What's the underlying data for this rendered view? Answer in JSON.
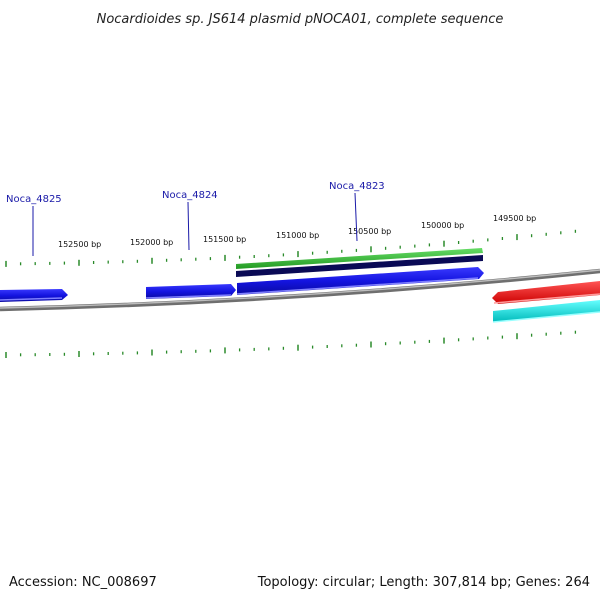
{
  "title": "Nocardioides sp. JS614 plasmid pNOCA01, complete sequence",
  "footer": {
    "accession": "Accession: NC_008697",
    "summary": "Topology: circular; Length: 307,814 bp; Genes: 264"
  },
  "colors": {
    "tick": "#2a8a2a",
    "backbone": "#888888",
    "gene_blue": "#1414e0",
    "gene_green": "#33bb33",
    "gene_navy": "#0a0a55",
    "gene_red": "#ee1111",
    "gene_cyan": "#11dddd",
    "label": "#1a1aa8"
  },
  "scale": {
    "tick_labels": [
      "152500 bp",
      "152000 bp",
      "151500 bp",
      "151000 bp",
      "150500 bp",
      "150000 bp",
      "149500 bp"
    ]
  },
  "genes": [
    {
      "name": "Noca_4825"
    },
    {
      "name": "Noca_4824"
    },
    {
      "name": "Noca_4823"
    }
  ]
}
